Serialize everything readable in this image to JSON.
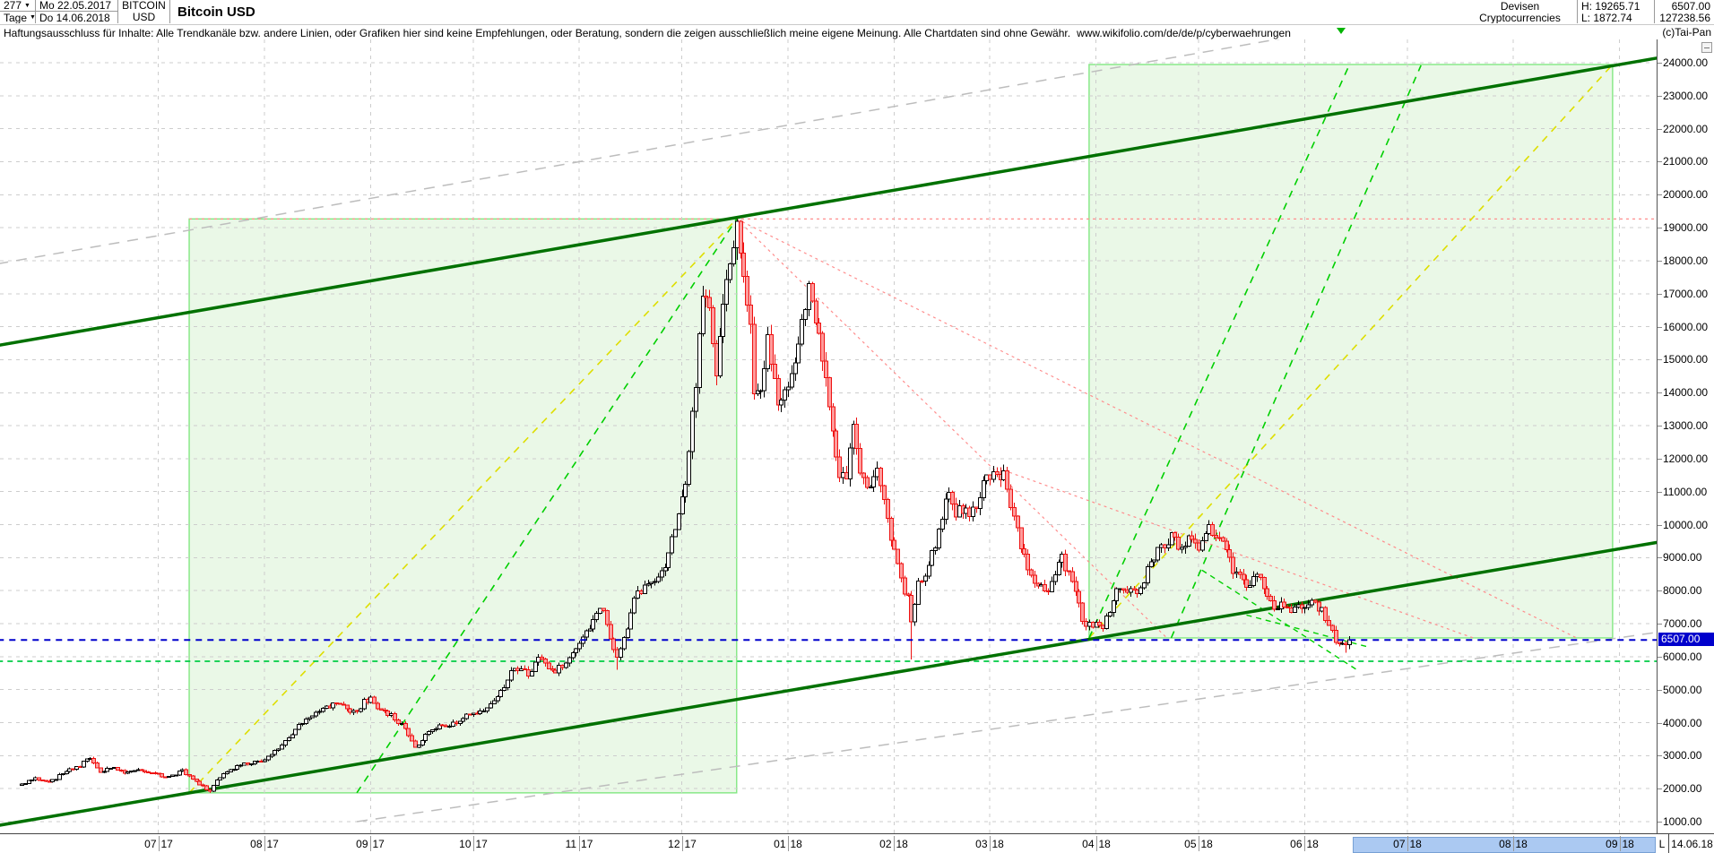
{
  "header": {
    "bars_count": "277",
    "period_unit": "Tage",
    "start_date": "Mo 22.05.2017",
    "end_date": "Do 14.06.2018",
    "symbol_line1": "BITCOIN",
    "symbol_line2": "USD",
    "title": "Bitcoin USD",
    "category_line1": "Devisen",
    "category_line2": "Cryptocurrencies",
    "high_label": "H: 19265.71",
    "low_label": "L: 1872.74",
    "last_price": "6507.00",
    "volume": "127238.56"
  },
  "disclaimer_text": "Haftungsausschluss für Inhalte: Alle Trendkanäle bzw. andere Linien, oder Grafiken hier sind keine Empfehlungen, oder Beratung, sondern die zeigen ausschließlich meine eigene Meinung. Alle Chartdaten sind ohne Gewähr.",
  "disclaimer_url": "www.wikifolio.com/de/de/p/cyberwaehrungen",
  "watermark": "(c)Tai-Pan",
  "x_axis": {
    "last_marker": "L",
    "last_date": "14.06.18"
  },
  "price_marker": {
    "value": "6507.00"
  },
  "chart_data": {
    "type": "candlestick",
    "title": "Bitcoin USD",
    "date_start": "22.05.2017",
    "date_end": "14.06.2018",
    "days": 388,
    "high": 19265.71,
    "low": 1872.74,
    "last": 6507.0,
    "y_axis": {
      "min": 1000,
      "max": 24000,
      "step": 1000,
      "decimals": 2,
      "unit": "USD"
    },
    "months": [
      {
        "label": "07.17",
        "day": 40
      },
      {
        "label": "08.17",
        "day": 71
      },
      {
        "label": "09.17",
        "day": 102
      },
      {
        "label": "10.17",
        "day": 132
      },
      {
        "label": "11.17",
        "day": 163
      },
      {
        "label": "12.17",
        "day": 193
      },
      {
        "label": "01.18",
        "day": 224
      },
      {
        "label": "02.18",
        "day": 255
      },
      {
        "label": "03.18",
        "day": 283
      },
      {
        "label": "04.18",
        "day": 314
      },
      {
        "label": "05.18",
        "day": 344
      },
      {
        "label": "06.18",
        "day": 375
      },
      {
        "label": "07.18",
        "day": 405
      },
      {
        "label": "08.18",
        "day": 436
      },
      {
        "label": "09.18",
        "day": 467
      }
    ],
    "future_start_day": 389,
    "future_months": [
      "07.18",
      "08.18",
      "09.18"
    ],
    "anchors": [
      [
        0,
        2124
      ],
      [
        4,
        2320
      ],
      [
        8,
        2180
      ],
      [
        12,
        2460
      ],
      [
        17,
        2700
      ],
      [
        20,
        2940
      ],
      [
        23,
        2530
      ],
      [
        26,
        2640
      ],
      [
        30,
        2480
      ],
      [
        34,
        2590
      ],
      [
        38,
        2500
      ],
      [
        43,
        2340
      ],
      [
        47,
        2560
      ],
      [
        50,
        2280
      ],
      [
        53,
        2060
      ],
      [
        55,
        1905
      ],
      [
        57,
        2230
      ],
      [
        60,
        2520
      ],
      [
        64,
        2730
      ],
      [
        68,
        2810
      ],
      [
        71,
        2870
      ],
      [
        75,
        3230
      ],
      [
        79,
        3650
      ],
      [
        83,
        4150
      ],
      [
        87,
        4330
      ],
      [
        92,
        4580
      ],
      [
        98,
        4300
      ],
      [
        100,
        4630
      ],
      [
        102,
        4750
      ],
      [
        105,
        4320
      ],
      [
        108,
        4230
      ],
      [
        112,
        3840
      ],
      [
        115,
        3250
      ],
      [
        118,
        3620
      ],
      [
        122,
        3880
      ],
      [
        126,
        3950
      ],
      [
        130,
        4200
      ],
      [
        134,
        4370
      ],
      [
        138,
        4610
      ],
      [
        141,
        5150
      ],
      [
        144,
        5690
      ],
      [
        148,
        5480
      ],
      [
        152,
        6010
      ],
      [
        155,
        5540
      ],
      [
        158,
        5750
      ],
      [
        161,
        6180
      ],
      [
        164,
        6560
      ],
      [
        167,
        7150
      ],
      [
        170,
        7440
      ],
      [
        172,
        6540
      ],
      [
        174,
        5950
      ],
      [
        177,
        6750
      ],
      [
        179,
        7850
      ],
      [
        182,
        8080
      ],
      [
        185,
        8250
      ],
      [
        188,
        8750
      ],
      [
        191,
        9920
      ],
      [
        194,
        11100
      ],
      [
        197,
        14250
      ],
      [
        199,
        16800
      ],
      [
        201,
        16600
      ],
      [
        203,
        14300
      ],
      [
        205,
        16700
      ],
      [
        207,
        17600
      ],
      [
        209,
        18950
      ],
      [
        211,
        17450
      ],
      [
        213,
        16200
      ],
      [
        214,
        13900
      ],
      [
        216,
        14100
      ],
      [
        218,
        15650
      ],
      [
        221,
        13850
      ],
      [
        224,
        14180
      ],
      [
        226,
        15080
      ],
      [
        228,
        16150
      ],
      [
        230,
        17100
      ],
      [
        232,
        16250
      ],
      [
        234,
        15150
      ],
      [
        237,
        12900
      ],
      [
        239,
        11250
      ],
      [
        241,
        11550
      ],
      [
        243,
        12820
      ],
      [
        245,
        11700
      ],
      [
        247,
        11150
      ],
      [
        250,
        11750
      ],
      [
        253,
        10150
      ],
      [
        255,
        9150
      ],
      [
        257,
        8300
      ],
      [
        259,
        7750
      ],
      [
        260,
        6980
      ],
      [
        262,
        8170
      ],
      [
        264,
        8600
      ],
      [
        267,
        9350
      ],
      [
        269,
        10150
      ],
      [
        271,
        11050
      ],
      [
        273,
        10420
      ],
      [
        276,
        10320
      ],
      [
        279,
        10580
      ],
      [
        281,
        11230
      ],
      [
        284,
        11480
      ],
      [
        287,
        11500
      ],
      [
        289,
        10350
      ],
      [
        291,
        9870
      ],
      [
        294,
        8550
      ],
      [
        297,
        8170
      ],
      [
        300,
        7940
      ],
      [
        302,
        8590
      ],
      [
        304,
        8950
      ],
      [
        306,
        8460
      ],
      [
        308,
        7920
      ],
      [
        310,
        7080
      ],
      [
        312,
        6920
      ],
      [
        314,
        7030
      ],
      [
        316,
        6860
      ],
      [
        318,
        7420
      ],
      [
        320,
        7950
      ],
      [
        323,
        8020
      ],
      [
        326,
        7890
      ],
      [
        328,
        8320
      ],
      [
        330,
        8880
      ],
      [
        332,
        9250
      ],
      [
        334,
        9380
      ],
      [
        336,
        9680
      ],
      [
        338,
        9340
      ],
      [
        340,
        9410
      ],
      [
        342,
        9690
      ],
      [
        344,
        9250
      ],
      [
        346,
        9820
      ],
      [
        348,
        9840
      ],
      [
        350,
        9510
      ],
      [
        352,
        9250
      ],
      [
        354,
        8470
      ],
      [
        356,
        8370
      ],
      [
        358,
        8240
      ],
      [
        361,
        8420
      ],
      [
        363,
        8140
      ],
      [
        365,
        7590
      ],
      [
        368,
        7520
      ],
      [
        371,
        7360
      ],
      [
        373,
        7490
      ],
      [
        376,
        7680
      ],
      [
        378,
        7590
      ],
      [
        380,
        7410
      ],
      [
        382,
        6840
      ],
      [
        384,
        6520
      ],
      [
        386,
        6400
      ],
      [
        387,
        6340
      ],
      [
        388,
        6507
      ]
    ],
    "pins": {
      "55": {
        "low": 1872.74
      },
      "174": {
        "low": 5605
      },
      "209": {
        "high": 19265.71
      },
      "260": {
        "low": 5920
      },
      "387": {
        "low": 6120
      },
      "388": {
        "close": 6507
      }
    },
    "overlays": [
      {
        "kind": "box",
        "name": "trend-box-2017",
        "d1": 49,
        "p1": 1872.74,
        "d2": 209,
        "p2": 19265.71
      },
      {
        "kind": "box",
        "name": "projection-box-2018",
        "d1": 312,
        "p1": 6569,
        "d2": 465,
        "p2": 23946
      },
      {
        "kind": "line",
        "name": "gray-trend-upper",
        "color": "gray_trend",
        "dash": "12 9",
        "w": 1.5,
        "d1": -7,
        "p1": 17905,
        "d2": 479,
        "p2": 26750
      },
      {
        "kind": "line",
        "name": "gray-trend-lower",
        "color": "gray_trend",
        "dash": "12 9",
        "w": 1.5,
        "d1": 98,
        "p1": 1000,
        "d2": 482,
        "p2": 6800
      },
      {
        "kind": "line",
        "name": "high-level-red",
        "color": "red",
        "dash": "3 4",
        "w": 1.2,
        "d1": 49,
        "p1": 19265.71,
        "d2": 479,
        "p2": 19265.71
      },
      {
        "kind": "line",
        "name": "red-fan-1",
        "color": "red",
        "dash": "3 4",
        "w": 1.2,
        "d1": 209,
        "p1": 19265.71,
        "d2": 335,
        "p2": 6540
      },
      {
        "kind": "line",
        "name": "red-fan-2",
        "color": "red",
        "dash": "3 4",
        "w": 1.2,
        "d1": 209,
        "p1": 19265.71,
        "d2": 455,
        "p2": 6540
      },
      {
        "kind": "line",
        "name": "red-fan-3",
        "color": "red",
        "dash": "3 4",
        "w": 1.2,
        "d1": 287,
        "p1": 11650,
        "d2": 425,
        "p2": 6540
      },
      {
        "kind": "line",
        "name": "fib-fan-yellow-left",
        "color": "yellow",
        "dash": "8 7",
        "w": 1.6,
        "d1": 49,
        "p1": 1872.74,
        "d2": 209,
        "p2": 19265.71
      },
      {
        "kind": "line",
        "name": "fan-green-left",
        "color": "green_fan",
        "dash": "8 7",
        "w": 1.6,
        "d1": 98,
        "p1": 1872.74,
        "d2": 209,
        "p2": 19265.71
      },
      {
        "kind": "line",
        "name": "fib-fan-yellow-right",
        "color": "yellow",
        "dash": "8 7",
        "w": 1.6,
        "d1": 312,
        "p1": 6569,
        "d2": 465,
        "p2": 23946
      },
      {
        "kind": "line",
        "name": "fan-green-right-1",
        "color": "green_fan",
        "dash": "8 7",
        "w": 1.6,
        "d1": 312,
        "p1": 6569,
        "d2": 388,
        "p2": 23919
      },
      {
        "kind": "line",
        "name": "fan-green-right-2",
        "color": "green_fan",
        "dash": "8 7",
        "w": 1.6,
        "d1": 336,
        "p1": 6569,
        "d2": 409,
        "p2": 23919
      },
      {
        "kind": "line",
        "name": "green-desc-1",
        "color": "green_fan",
        "dash": "6 5",
        "w": 1.4,
        "d1": 345,
        "p1": 8620,
        "d2": 390,
        "p2": 5620
      },
      {
        "kind": "line",
        "name": "green-desc-2",
        "color": "green_fan",
        "dash": "6 5",
        "w": 1.4,
        "d1": 358,
        "p1": 7260,
        "d2": 393,
        "p2": 6310
      },
      {
        "kind": "line",
        "name": "support-level-green",
        "color": "green_level",
        "dash": "6 5",
        "w": 1.8,
        "d1": -7,
        "p1": 5860,
        "d2": 479,
        "p2": 5860
      },
      {
        "kind": "line",
        "name": "trend-channel-upper",
        "color": "channel",
        "w": 3.5,
        "d1": -7,
        "p1": 15430,
        "d2": 479,
        "p2": 24160
      },
      {
        "kind": "line",
        "name": "trend-channel-lower",
        "color": "channel",
        "w": 3.5,
        "d1": -7,
        "p1": 880,
        "d2": 479,
        "p2": 9480
      },
      {
        "kind": "line",
        "name": "last-price-line",
        "color": "blue_line",
        "dash": "7 6",
        "w": 2,
        "layer": "top",
        "d1": -7,
        "p1": 6507,
        "d2": 479,
        "p2": 6507
      }
    ],
    "colors": {
      "up_body": "#ffffff",
      "up_border": "#000000",
      "down_body": "#ff9c9c",
      "down_border": "#ee1111",
      "down_wick": "#ee1111",
      "channel": "#007100",
      "box_fill": "#eaf8e7",
      "box_border": "#82e882",
      "yellow": "#dede00",
      "green_fan": "#00cf00",
      "green_level": "#00cc44",
      "red": "#ff8d8d",
      "gray_trend": "#bdbdbd",
      "grid": "#cdcdcd",
      "blue_line": "#0000cc",
      "blue_label_bg": "#0000cc",
      "blue_label_fg": "#ffffff",
      "future_band_bg": "#abc9f2",
      "marker_green": "#00b400"
    }
  }
}
